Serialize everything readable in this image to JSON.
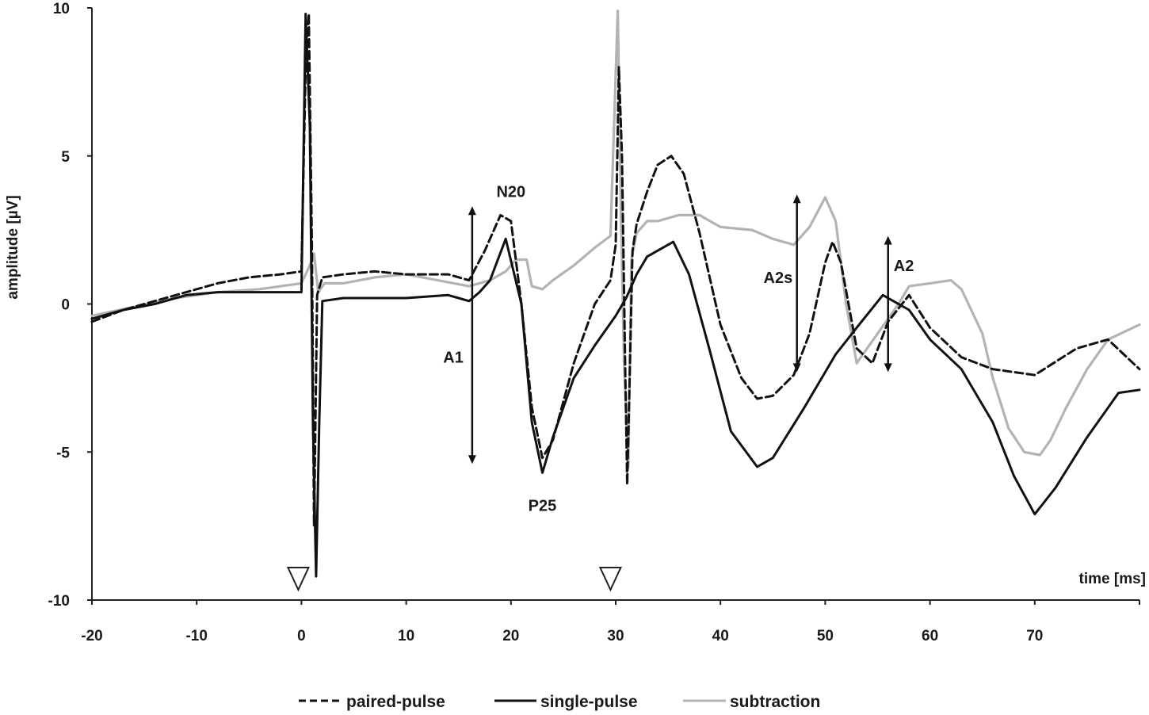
{
  "chart_data": {
    "type": "line",
    "xlabel": "time [ms]",
    "ylabel": "amplitude [µV]",
    "xlim": [
      -20,
      80
    ],
    "ylim": [
      -10,
      10
    ],
    "x_ticks": [
      "-20",
      "-10",
      "0",
      "10",
      "20",
      "30",
      "40",
      "50",
      "60",
      "70"
    ],
    "x_tick_values": [
      -20,
      -10,
      0,
      10,
      20,
      30,
      40,
      50,
      60,
      70
    ],
    "y_ticks": [
      "10",
      "5",
      "0",
      "-5",
      "-10"
    ],
    "y_tick_values": [
      10,
      5,
      0,
      -5,
      -10
    ],
    "grid": false,
    "legend_position": "bottom",
    "stimulus_markers_ms": [
      -0.3,
      29.5
    ],
    "annotations": [
      {
        "text": "N20",
        "x": 20,
        "y": 3.8
      },
      {
        "text": "P25",
        "x": 23,
        "y": -6.8
      },
      {
        "text": "A1",
        "x": 14.5,
        "y": -1.8
      },
      {
        "text": "A2s",
        "x": 45.5,
        "y": 0.9
      },
      {
        "text": "A2",
        "x": 57.5,
        "y": 1.3
      }
    ],
    "amplitude_arrows": [
      {
        "label": "A1",
        "x": 16.3,
        "y_top": 3.3,
        "y_bottom": -5.4
      },
      {
        "label": "A2s",
        "x": 47.3,
        "y_top": 3.7,
        "y_bottom": -2.3
      },
      {
        "label": "A2",
        "x": 56.0,
        "y_top": 2.3,
        "y_bottom": -2.3
      }
    ],
    "series": [
      {
        "name": "paired-pulse",
        "color": "#111111",
        "style": "dashed",
        "x": [
          -20,
          -17,
          -14,
          -11,
          -8,
          -5,
          -2,
          0,
          0.4,
          0.7,
          1.0,
          1.2,
          1.5,
          2,
          4,
          7,
          10,
          14,
          16,
          17.5,
          19,
          20,
          21,
          22,
          23,
          24,
          26,
          28,
          29.5,
          30,
          30.3,
          30.6,
          30.9,
          31.1,
          31.3,
          31.6,
          32,
          33,
          34,
          35.3,
          36.5,
          38,
          40,
          42,
          43.5,
          45,
          47,
          48.5,
          50,
          50.7,
          51.5,
          53,
          54.5,
          56,
          58,
          60,
          63,
          66,
          70,
          74,
          77,
          80
        ],
        "y": [
          -0.6,
          -0.2,
          0.1,
          0.4,
          0.7,
          0.9,
          1.0,
          1.1,
          8.0,
          9.8,
          2.0,
          -7.5,
          0.3,
          0.9,
          1.0,
          1.1,
          1.0,
          1.0,
          0.8,
          1.8,
          3.0,
          2.8,
          0.0,
          -3.5,
          -5.2,
          -4.6,
          -2.0,
          0.0,
          0.8,
          2.0,
          8.0,
          5.0,
          -2.0,
          -6.1,
          -3.0,
          1.8,
          2.7,
          3.8,
          4.7,
          5.0,
          4.4,
          2.4,
          -0.7,
          -2.5,
          -3.2,
          -3.1,
          -2.4,
          -1.0,
          1.4,
          2.1,
          1.4,
          -1.5,
          -2.0,
          -0.6,
          0.3,
          -0.8,
          -1.8,
          -2.2,
          -2.4,
          -1.5,
          -1.2,
          -2.2
        ]
      },
      {
        "name": "single-pulse",
        "color": "#111111",
        "style": "solid",
        "x": [
          -20,
          -17,
          -14,
          -11,
          -8,
          -5,
          -2,
          0,
          0.4,
          0.8,
          1.1,
          1.4,
          1.7,
          2,
          4,
          7,
          10,
          14,
          15,
          16,
          17,
          18,
          19.5,
          21,
          22,
          23,
          24,
          26,
          28,
          30,
          31,
          32,
          33,
          35.5,
          37,
          39,
          41,
          43.5,
          45,
          48,
          51,
          53,
          55.5,
          58,
          60,
          63,
          66,
          68,
          70,
          72,
          75,
          78,
          80
        ],
        "y": [
          -0.5,
          -0.2,
          0.0,
          0.3,
          0.4,
          0.4,
          0.4,
          0.4,
          9.8,
          6.0,
          -4.0,
          -9.2,
          -4.0,
          0.1,
          0.2,
          0.2,
          0.2,
          0.3,
          0.2,
          0.1,
          0.4,
          0.8,
          2.2,
          0.0,
          -4.0,
          -5.7,
          -4.5,
          -2.5,
          -1.4,
          -0.4,
          0.2,
          1.0,
          1.6,
          2.1,
          1.0,
          -1.6,
          -4.3,
          -5.5,
          -5.2,
          -3.5,
          -1.7,
          -0.8,
          0.3,
          -0.2,
          -1.2,
          -2.2,
          -4.0,
          -5.8,
          -7.1,
          -6.2,
          -4.5,
          -3.0,
          -2.9
        ]
      },
      {
        "name": "subtraction",
        "color": "#b3b3b3",
        "style": "solid",
        "x": [
          -20,
          -16,
          -12,
          -8,
          -4,
          0,
          0.8,
          1.2,
          1.6,
          2.2,
          4,
          7,
          10,
          13,
          16,
          18,
          19.5,
          20.5,
          21.5,
          22,
          23,
          24,
          26,
          28,
          29.5,
          30.2,
          30.5,
          30.8,
          31.2,
          31.5,
          32,
          33,
          34,
          36,
          38,
          40,
          43,
          45,
          47,
          48.5,
          50,
          51,
          52,
          53,
          55,
          57,
          58,
          60,
          62,
          63,
          65,
          66,
          67.5,
          69,
          70.5,
          71.5,
          73,
          75,
          77,
          80
        ],
        "y": [
          -0.4,
          -0.1,
          0.2,
          0.4,
          0.5,
          0.7,
          1.3,
          1.7,
          0.4,
          0.7,
          0.7,
          0.9,
          1.0,
          0.8,
          0.6,
          0.8,
          1.1,
          1.5,
          1.5,
          0.6,
          0.5,
          0.8,
          1.3,
          1.9,
          2.3,
          9.9,
          3.0,
          -2.0,
          -5.5,
          1.5,
          2.4,
          2.8,
          2.8,
          3.0,
          3.0,
          2.6,
          2.5,
          2.2,
          2.0,
          2.6,
          3.6,
          2.8,
          0.0,
          -2.0,
          -1.0,
          0.0,
          0.6,
          0.7,
          0.8,
          0.5,
          -1.0,
          -2.5,
          -4.2,
          -5.0,
          -5.1,
          -4.6,
          -3.5,
          -2.2,
          -1.2,
          -0.7
        ]
      }
    ]
  }
}
